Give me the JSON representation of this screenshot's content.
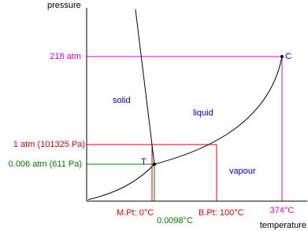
{
  "axes": {
    "y_label": "pressure",
    "x_label": "temperature"
  },
  "pressure_labels": {
    "critical": "218 atm",
    "one_atm": "1 atm (101325 Pa)",
    "triple": "0.006 atm (611 Pa)"
  },
  "temperature_labels": {
    "melting": "M.Pt: 0°C",
    "triple": "0.0098°C",
    "boiling": "B.Pt: 100°C",
    "critical": "374°C"
  },
  "points": {
    "critical": "C",
    "triple": "T"
  },
  "regions": {
    "solid": "solid",
    "liquid": "liquid",
    "vapour": "vapour"
  }
}
